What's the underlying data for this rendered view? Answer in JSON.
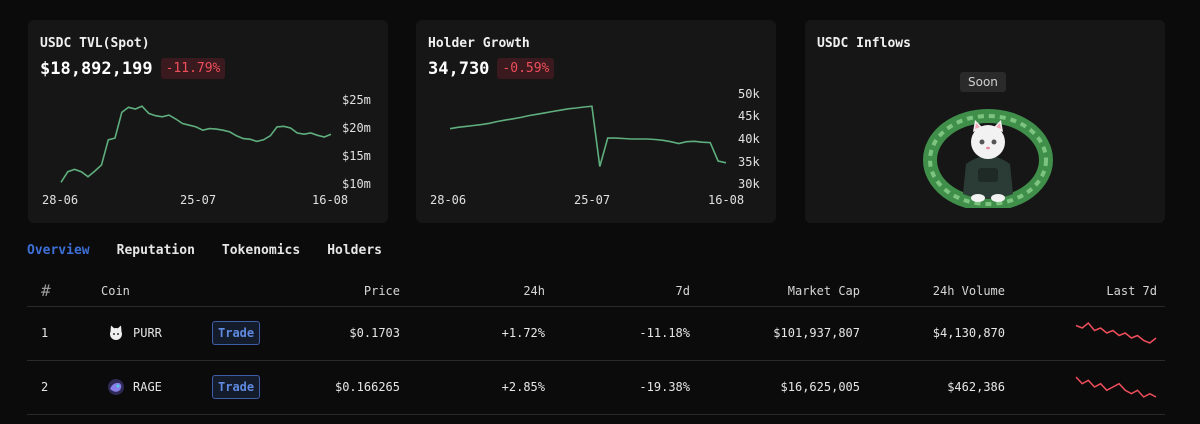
{
  "cards": {
    "tvl": {
      "title": "USDC TVL(Spot)",
      "value": "$18,892,199",
      "change": "-11.79%",
      "y_ticks": [
        "$25m",
        "$20m",
        "$15m",
        "$10m"
      ],
      "x_ticks": [
        "28-06",
        "25-07",
        "16-08"
      ]
    },
    "holders": {
      "title": "Holder Growth",
      "value": "34,730",
      "change": "-0.59%",
      "y_ticks": [
        "50k",
        "45k",
        "40k",
        "35k",
        "30k"
      ],
      "x_ticks": [
        "28-06",
        "25-07",
        "16-08"
      ]
    },
    "inflows": {
      "title": "USDC Inflows",
      "soon_label": "Soon"
    }
  },
  "chart_data": [
    {
      "type": "line",
      "ylim": [
        10,
        25
      ],
      "color": "#5fae7d",
      "values": [
        10.3,
        12.2,
        12.6,
        12.2,
        11.3,
        12.3,
        13.4,
        17.9,
        18.2,
        22.8,
        23.7,
        23.4,
        23.9,
        22.6,
        22.2,
        22.0,
        22.3,
        21.6,
        20.8,
        20.5,
        20.2,
        19.6,
        19.9,
        19.8,
        19.6,
        19.3,
        18.6,
        18.1,
        18.0,
        17.6,
        17.9,
        18.6,
        20.2,
        20.3,
        20.0,
        19.1,
        18.9,
        19.1,
        18.7,
        18.4,
        18.9
      ]
    },
    {
      "type": "line",
      "ylim": [
        30,
        50
      ],
      "color": "#5fae7d",
      "values": [
        42.3,
        42.6,
        42.8,
        43.0,
        43.2,
        43.5,
        43.9,
        44.2,
        44.5,
        44.8,
        45.2,
        45.5,
        45.8,
        46.1,
        46.4,
        46.7,
        46.9,
        47.1,
        47.3,
        33.9,
        40.2,
        40.2,
        40.1,
        40.0,
        40.0,
        40.0,
        39.9,
        39.7,
        39.4,
        39.0,
        39.4,
        39.5,
        39.3,
        39.2,
        35.1,
        34.7
      ]
    }
  ],
  "tabs": [
    "Overview",
    "Reputation",
    "Tokenomics",
    "Holders"
  ],
  "table": {
    "headers": [
      "#",
      "Coin",
      "Price",
      "24h",
      "7d",
      "Market Cap",
      "24h Volume",
      "Last 7d"
    ],
    "trade_label": "Trade",
    "rows": [
      {
        "rank": "1",
        "coin": "PURR",
        "price": "$0.1703",
        "change_24h": "+1.72%",
        "change_7d": "-11.18%",
        "market_cap": "$101,937,807",
        "volume_24h": "$4,130,870",
        "spark": [
          8,
          7,
          9,
          6,
          7,
          5,
          6,
          4,
          5,
          3,
          4,
          2,
          1,
          3
        ]
      },
      {
        "rank": "2",
        "coin": "RAGE",
        "price": "$0.166265",
        "change_24h": "+2.85%",
        "change_7d": "-19.38%",
        "market_cap": "$16,625,005",
        "volume_24h": "$462,386",
        "spark": [
          8,
          6,
          7,
          5,
          6,
          4,
          5,
          6,
          4,
          3,
          4,
          2,
          3,
          2
        ]
      }
    ]
  }
}
